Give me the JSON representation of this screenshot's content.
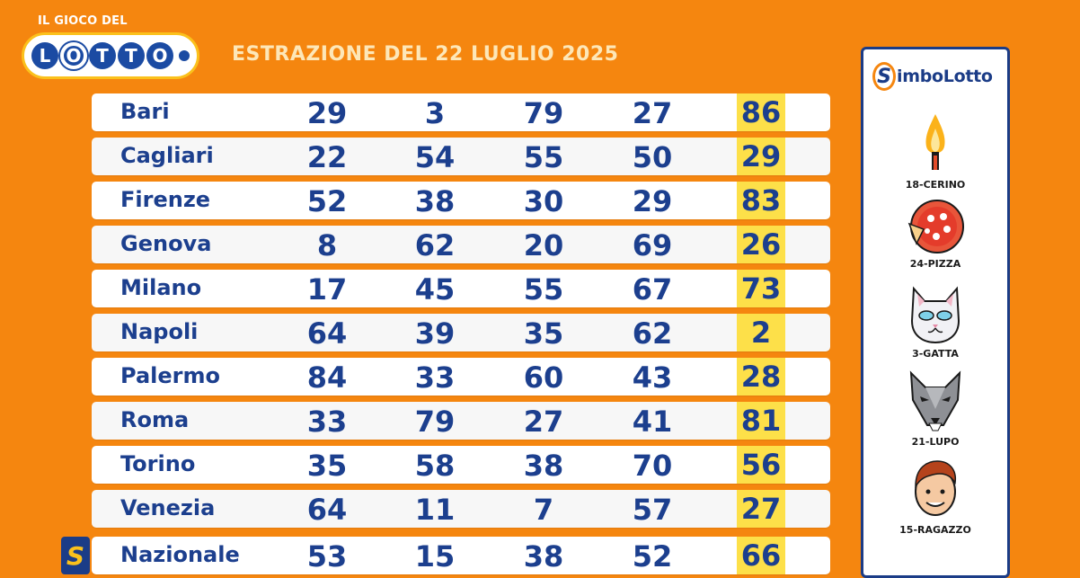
{
  "logo": {
    "top_text": "IL GIOCO DEL",
    "letters": [
      "L",
      "O",
      "T",
      "T",
      "O"
    ]
  },
  "title": "ESTRAZIONE DEL 22 LUGLIO 2025",
  "rows": [
    {
      "city": "Bari",
      "numbers": [
        "29",
        "3",
        "79",
        "27",
        "86"
      ]
    },
    {
      "city": "Cagliari",
      "numbers": [
        "22",
        "54",
        "55",
        "50",
        "29"
      ]
    },
    {
      "city": "Firenze",
      "numbers": [
        "52",
        "38",
        "30",
        "29",
        "83"
      ]
    },
    {
      "city": "Genova",
      "numbers": [
        "8",
        "62",
        "20",
        "69",
        "26"
      ]
    },
    {
      "city": "Milano",
      "numbers": [
        "17",
        "45",
        "55",
        "67",
        "73"
      ]
    },
    {
      "city": "Napoli",
      "numbers": [
        "64",
        "39",
        "35",
        "62",
        "2"
      ]
    },
    {
      "city": "Palermo",
      "numbers": [
        "84",
        "33",
        "60",
        "43",
        "28"
      ]
    },
    {
      "city": "Roma",
      "numbers": [
        "33",
        "79",
        "27",
        "41",
        "81"
      ]
    },
    {
      "city": "Torino",
      "numbers": [
        "35",
        "58",
        "38",
        "70",
        "56"
      ]
    },
    {
      "city": "Venezia",
      "numbers": [
        "64",
        "11",
        "7",
        "57",
        "27"
      ]
    },
    {
      "city": "Nazionale",
      "numbers": [
        "53",
        "15",
        "38",
        "52",
        "66"
      ]
    }
  ],
  "nazionale_badge": "S",
  "simbolotto": {
    "s_glyph": "S",
    "title": "imboLotto",
    "symbols": [
      {
        "label": "18-CERINO",
        "icon": "match-icon"
      },
      {
        "label": "24-PIZZA",
        "icon": "pizza-icon"
      },
      {
        "label": "3-GATTA",
        "icon": "cat-icon"
      },
      {
        "label": "21-LUPO",
        "icon": "wolf-icon"
      },
      {
        "label": "15-RAGAZZO",
        "icon": "boy-icon"
      }
    ]
  },
  "colors": {
    "background": "#f5860f",
    "navy": "#1c3f8e",
    "highlight": "#fde049"
  }
}
